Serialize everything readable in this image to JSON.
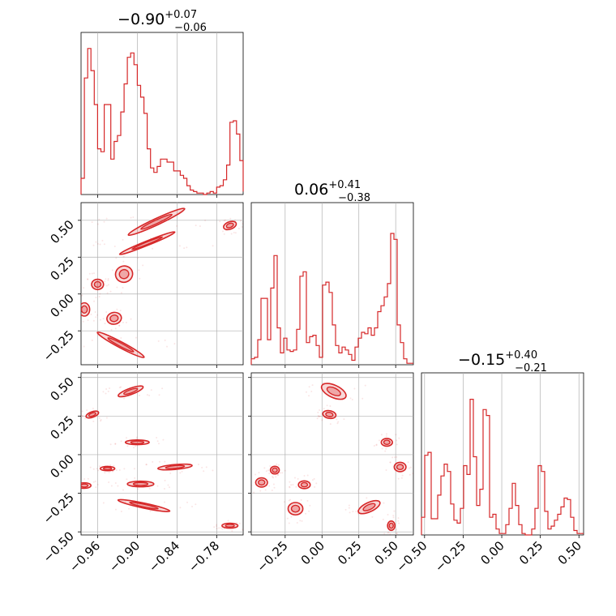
{
  "colors": {
    "series": "#d62728",
    "grid": "#b0b0b0",
    "axis": "#000000"
  },
  "chart_data": [
    {
      "type": "histogram",
      "panel": "p00",
      "title_main": "−0.90",
      "title_sup": "+0.07",
      "title_sub": "−0.06",
      "xlim": [
        -0.985,
        -0.74
      ],
      "xticks": [
        {
          "v": -0.96,
          "label": "−0.96"
        },
        {
          "v": -0.9,
          "label": "−0.90"
        },
        {
          "v": -0.84,
          "label": "−0.84"
        },
        {
          "v": -0.78,
          "label": "−0.78"
        }
      ],
      "bins": [
        -0.985,
        -0.98,
        -0.975,
        -0.97,
        -0.965,
        -0.96,
        -0.955,
        -0.95,
        -0.945,
        -0.94,
        -0.935,
        -0.93,
        -0.925,
        -0.92,
        -0.915,
        -0.91,
        -0.905,
        -0.9,
        -0.895,
        -0.89,
        -0.885,
        -0.88,
        -0.875,
        -0.87,
        -0.865,
        -0.86,
        -0.855,
        -0.85,
        -0.845,
        -0.84,
        -0.835,
        -0.83,
        -0.825,
        -0.82,
        -0.815,
        -0.81,
        -0.805,
        -0.8,
        -0.795,
        -0.79,
        -0.785,
        -0.78,
        -0.775,
        -0.77,
        -0.765,
        -0.76,
        -0.755,
        -0.75,
        -0.745,
        -0.74
      ],
      "counts": [
        0.11,
        0.79,
        0.99,
        0.84,
        0.61,
        0.31,
        0.29,
        0.61,
        0.61,
        0.24,
        0.36,
        0.4,
        0.56,
        0.75,
        0.93,
        0.96,
        0.88,
        0.74,
        0.66,
        0.55,
        0.31,
        0.18,
        0.15,
        0.19,
        0.24,
        0.24,
        0.22,
        0.22,
        0.16,
        0.16,
        0.13,
        0.11,
        0.06,
        0.03,
        0.02,
        0.01,
        0.01,
        0.0,
        0.01,
        0.02,
        0.01,
        0.05,
        0.06,
        0.1,
        0.2,
        0.49,
        0.5,
        0.41,
        0.23,
        0.02
      ]
    },
    {
      "type": "histogram",
      "panel": "p11",
      "title_main": "0.06",
      "title_sup": "+0.41",
      "title_sub": "−0.38",
      "xlim": [
        -0.48,
        0.62
      ],
      "xticks": [
        {
          "v": -0.25,
          "label": "−0.25"
        },
        {
          "v": 0.0,
          "label": "0.00"
        },
        {
          "v": 0.25,
          "label": "0.25"
        },
        {
          "v": 0.5,
          "label": "0.50"
        }
      ],
      "bins": [
        -0.48,
        -0.458,
        -0.436,
        -0.414,
        -0.392,
        -0.37,
        -0.348,
        -0.326,
        -0.304,
        -0.282,
        -0.26,
        -0.238,
        -0.216,
        -0.194,
        -0.172,
        -0.15,
        -0.128,
        -0.106,
        -0.084,
        -0.062,
        -0.04,
        -0.018,
        0.004,
        0.026,
        0.048,
        0.07,
        0.092,
        0.114,
        0.136,
        0.158,
        0.18,
        0.202,
        0.224,
        0.246,
        0.268,
        0.29,
        0.312,
        0.334,
        0.356,
        0.378,
        0.4,
        0.422,
        0.444,
        0.466,
        0.488,
        0.51,
        0.532,
        0.554,
        0.576,
        0.598,
        0.62
      ],
      "counts": [
        0.04,
        0.05,
        0.17,
        0.45,
        0.45,
        0.17,
        0.52,
        0.74,
        0.25,
        0.08,
        0.18,
        0.1,
        0.09,
        0.1,
        0.24,
        0.6,
        0.63,
        0.15,
        0.19,
        0.2,
        0.13,
        0.05,
        0.54,
        0.56,
        0.49,
        0.27,
        0.13,
        0.08,
        0.12,
        0.1,
        0.07,
        0.03,
        0.12,
        0.18,
        0.22,
        0.21,
        0.25,
        0.2,
        0.25,
        0.36,
        0.4,
        0.46,
        0.55,
        0.89,
        0.85,
        0.27,
        0.15,
        0.04,
        0.01,
        0.01
      ]
    },
    {
      "type": "histogram",
      "panel": "p22",
      "title_main": "−0.15",
      "title_sup": "+0.40",
      "title_sub": "−0.21",
      "xlim": [
        -0.52,
        0.53
      ],
      "xticks": [
        {
          "v": -0.5,
          "label": "−0.50"
        },
        {
          "v": -0.25,
          "label": "−0.25"
        },
        {
          "v": 0.0,
          "label": "0.00"
        },
        {
          "v": 0.25,
          "label": "0.25"
        },
        {
          "v": 0.5,
          "label": "0.50"
        }
      ],
      "bins": [
        -0.52,
        -0.499,
        -0.478,
        -0.457,
        -0.436,
        -0.415,
        -0.394,
        -0.373,
        -0.352,
        -0.331,
        -0.31,
        -0.289,
        -0.268,
        -0.247,
        -0.226,
        -0.205,
        -0.184,
        -0.163,
        -0.142,
        -0.121,
        -0.1,
        -0.079,
        -0.058,
        -0.037,
        -0.016,
        0.005,
        0.026,
        0.047,
        0.068,
        0.089,
        0.11,
        0.131,
        0.152,
        0.173,
        0.194,
        0.215,
        0.236,
        0.257,
        0.278,
        0.299,
        0.32,
        0.341,
        0.362,
        0.383,
        0.404,
        0.425,
        0.446,
        0.467,
        0.488,
        0.509,
        0.53
      ],
      "counts": [
        0.12,
        0.54,
        0.56,
        0.11,
        0.11,
        0.27,
        0.4,
        0.48,
        0.43,
        0.21,
        0.1,
        0.08,
        0.18,
        0.47,
        0.41,
        0.92,
        0.53,
        0.2,
        0.31,
        0.85,
        0.81,
        0.12,
        0.14,
        0.04,
        0.01,
        0.01,
        0.07,
        0.18,
        0.35,
        0.2,
        0.07,
        0.01,
        0.0,
        0.0,
        0.04,
        0.18,
        0.47,
        0.43,
        0.16,
        0.04,
        0.06,
        0.1,
        0.14,
        0.19,
        0.25,
        0.24,
        0.12,
        0.03,
        0.01,
        0.01
      ]
    },
    {
      "type": "contour",
      "panel": "p10",
      "xlim": [
        -0.985,
        -0.74
      ],
      "ylim": [
        -0.48,
        0.62
      ],
      "xticks": [
        {
          "v": -0.96,
          "label": "−0.96"
        },
        {
          "v": -0.9,
          "label": "−0.90"
        },
        {
          "v": -0.84,
          "label": "−0.84"
        },
        {
          "v": -0.78,
          "label": "−0.78"
        }
      ],
      "yticks": [
        {
          "v": -0.25,
          "label": "−0.25"
        },
        {
          "v": 0.0,
          "label": "0.00"
        },
        {
          "v": 0.25,
          "label": "0.25"
        },
        {
          "v": 0.5,
          "label": "0.50"
        }
      ],
      "blobs": [
        {
          "x": -0.871,
          "y": 0.49,
          "sx": 0.047,
          "sy": 0.022,
          "rot": -25
        },
        {
          "x": -0.885,
          "y": 0.345,
          "sx": 0.045,
          "sy": 0.015,
          "rot": -22
        },
        {
          "x": -0.92,
          "y": 0.135,
          "sx": 0.013,
          "sy": 0.055,
          "rot": -20
        },
        {
          "x": -0.96,
          "y": 0.065,
          "sx": 0.009,
          "sy": 0.035,
          "rot": 0
        },
        {
          "x": -0.935,
          "y": -0.165,
          "sx": 0.011,
          "sy": 0.04,
          "rot": -10
        },
        {
          "x": -0.98,
          "y": -0.105,
          "sx": 0.008,
          "sy": 0.045,
          "rot": 0
        },
        {
          "x": -0.925,
          "y": -0.345,
          "sx": 0.04,
          "sy": 0.02,
          "rot": 28
        },
        {
          "x": -0.76,
          "y": 0.465,
          "sx": 0.01,
          "sy": 0.025,
          "rot": -20
        }
      ]
    },
    {
      "type": "contour",
      "panel": "p20",
      "xlim": [
        -0.985,
        -0.74
      ],
      "ylim": [
        -0.52,
        0.53
      ],
      "xticks": [
        {
          "v": -0.96,
          "label": "−0.96"
        },
        {
          "v": -0.9,
          "label": "−0.90"
        },
        {
          "v": -0.84,
          "label": "−0.84"
        },
        {
          "v": -0.78,
          "label": "−0.78"
        }
      ],
      "yticks": [
        {
          "v": -0.5,
          "label": "−0.50"
        },
        {
          "v": -0.25,
          "label": "−0.25"
        },
        {
          "v": 0.0,
          "label": "0.00"
        },
        {
          "v": 0.25,
          "label": "0.25"
        },
        {
          "v": 0.5,
          "label": "0.50"
        }
      ],
      "blobs": [
        {
          "x": -0.91,
          "y": 0.41,
          "sx": 0.02,
          "sy": 0.02,
          "rot": -20
        },
        {
          "x": -0.968,
          "y": 0.26,
          "sx": 0.01,
          "sy": 0.018,
          "rot": -20
        },
        {
          "x": -0.9,
          "y": 0.08,
          "sx": 0.018,
          "sy": 0.015,
          "rot": 0
        },
        {
          "x": -0.843,
          "y": -0.08,
          "sx": 0.026,
          "sy": 0.016,
          "rot": -5
        },
        {
          "x": -0.945,
          "y": -0.09,
          "sx": 0.011,
          "sy": 0.014,
          "rot": 0
        },
        {
          "x": -0.895,
          "y": -0.19,
          "sx": 0.02,
          "sy": 0.018,
          "rot": 0
        },
        {
          "x": -0.98,
          "y": -0.2,
          "sx": 0.01,
          "sy": 0.018,
          "rot": 0
        },
        {
          "x": -0.89,
          "y": -0.33,
          "sx": 0.04,
          "sy": 0.016,
          "rot": 12
        },
        {
          "x": -0.76,
          "y": -0.46,
          "sx": 0.012,
          "sy": 0.016,
          "rot": 0
        }
      ]
    },
    {
      "type": "contour",
      "panel": "p21",
      "xlim": [
        -0.48,
        0.62
      ],
      "ylim": [
        -0.52,
        0.53
      ],
      "xticks": [
        {
          "v": -0.25,
          "label": "−0.25"
        },
        {
          "v": 0.0,
          "label": "0.00"
        },
        {
          "v": 0.25,
          "label": "0.25"
        },
        {
          "v": 0.5,
          "label": "0.50"
        }
      ],
      "yticks": [
        {
          "v": -0.5,
          "label": "−0.50"
        },
        {
          "v": -0.25,
          "label": "−0.25"
        },
        {
          "v": 0.0,
          "label": "0.00"
        },
        {
          "v": 0.25,
          "label": "0.25"
        },
        {
          "v": 0.5,
          "label": "0.50"
        }
      ],
      "blobs": [
        {
          "x": 0.08,
          "y": 0.41,
          "sx": 0.09,
          "sy": 0.04,
          "rot": 25
        },
        {
          "x": 0.05,
          "y": 0.26,
          "sx": 0.045,
          "sy": 0.025,
          "rot": 10
        },
        {
          "x": 0.44,
          "y": 0.08,
          "sx": 0.038,
          "sy": 0.025,
          "rot": 0
        },
        {
          "x": 0.53,
          "y": -0.08,
          "sx": 0.04,
          "sy": 0.03,
          "rot": 0
        },
        {
          "x": -0.32,
          "y": -0.1,
          "sx": 0.03,
          "sy": 0.025,
          "rot": 0
        },
        {
          "x": -0.41,
          "y": -0.18,
          "sx": 0.04,
          "sy": 0.03,
          "rot": 0
        },
        {
          "x": -0.12,
          "y": -0.195,
          "sx": 0.04,
          "sy": 0.025,
          "rot": 0
        },
        {
          "x": -0.18,
          "y": -0.35,
          "sx": 0.05,
          "sy": 0.04,
          "rot": 0
        },
        {
          "x": 0.32,
          "y": -0.34,
          "sx": 0.08,
          "sy": 0.03,
          "rot": -25
        },
        {
          "x": 0.47,
          "y": -0.46,
          "sx": 0.025,
          "sy": 0.03,
          "rot": 0
        }
      ]
    }
  ]
}
